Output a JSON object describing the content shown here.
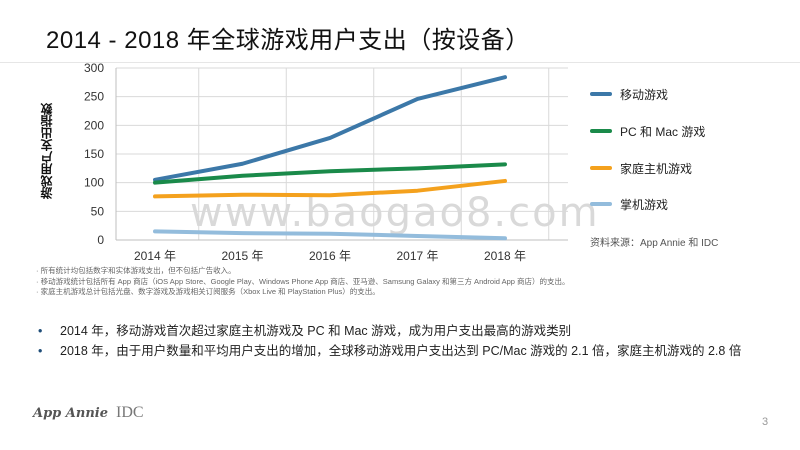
{
  "title": "2014 - 2018 年全球游戏用户支出（按设备）",
  "watermark": "www.baogao8.com",
  "source": "资料来源：App Annie 和 IDC",
  "footnotes": [
    "所有统计均包括数字和实体游戏支出，但不包括广告收入。",
    "移动游戏统计包括所有 App 商店（iOS App Store、Google Play、Windows Phone App 商店、亚马逊、Samsung Galaxy 和第三方 Android App 商店）的支出。",
    "家庭主机游戏总计包括光盘、数字游戏及游戏相关订阅服务（Xbox Live 和 PlayStation Plus）的支出。"
  ],
  "bullets": [
    "2014 年，移动游戏首次超过家庭主机游戏及 PC 和 Mac 游戏，成为用户支出最高的游戏类别",
    "2018 年，由于用户数量和平均用户支出的增加，全球移动游戏用户支出达到 PC/Mac 游戏的 2.1 倍，家庭主机游戏的 2.8 倍"
  ],
  "logos": {
    "left": "App Annie",
    "right": "IDC"
  },
  "page_number": "3",
  "chart_data": {
    "type": "line",
    "title": "2014 - 2018 年全球游戏用户支出（按设备）",
    "xlabel": "",
    "ylabel": "游戏用户支出指数",
    "categories": [
      "2014 年",
      "2015 年",
      "2016 年",
      "2017 年",
      "2018 年"
    ],
    "ylim": [
      0,
      300
    ],
    "yticks": [
      0,
      50,
      100,
      150,
      200,
      250,
      300
    ],
    "grid": true,
    "legend_position": "right",
    "series": [
      {
        "name": "移动游戏",
        "color": "#3c78a8",
        "values": [
          105,
          133,
          178,
          246,
          284
        ]
      },
      {
        "name": "PC 和 Mac 游戏",
        "color": "#1a8a4a",
        "values": [
          100,
          112,
          120,
          125,
          132
        ]
      },
      {
        "name": "家庭主机游戏",
        "color": "#f4a11d",
        "values": [
          76,
          79,
          78,
          86,
          103
        ]
      },
      {
        "name": "掌机游戏",
        "color": "#93bcdc",
        "values": [
          15,
          12,
          11,
          7,
          3
        ]
      }
    ]
  }
}
